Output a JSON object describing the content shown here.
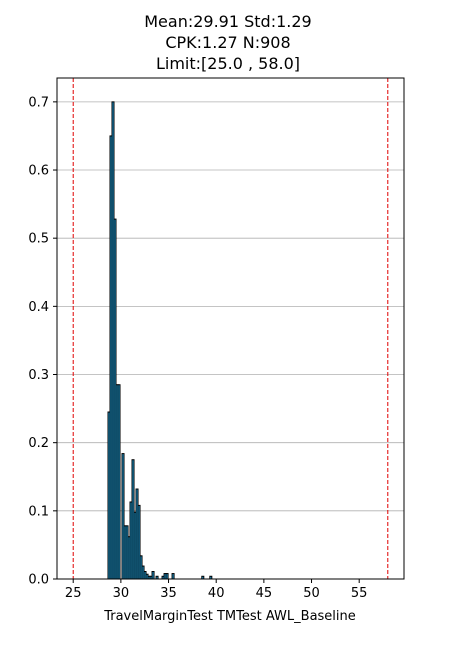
{
  "chart_data": {
    "type": "bar",
    "title_lines": [
      "Mean:29.91  Std:1.29",
      "CPK:1.27 N:908",
      "Limit:[25.0 , 58.0]"
    ],
    "xlabel": "TravelMarginTest TMTest AWL_Baseline",
    "ylabel": "",
    "xlim": [
      23.3,
      59.7
    ],
    "ylim": [
      0,
      0.735
    ],
    "xticks": [
      25,
      30,
      35,
      40,
      45,
      50,
      55
    ],
    "xtick_labels": [
      "25",
      "30",
      "35",
      "40",
      "45",
      "50",
      "55"
    ],
    "yticks": [
      0.0,
      0.1,
      0.2,
      0.3,
      0.4,
      0.5,
      0.6,
      0.7
    ],
    "ytick_labels": [
      "0.0",
      "0.1",
      "0.2",
      "0.3",
      "0.4",
      "0.5",
      "0.6",
      "0.7"
    ],
    "grid": "horizontal",
    "bin_width": 0.21,
    "bar_color": "#1f9fd9",
    "bar_edge_color": "#000000",
    "limit_line_color": "#e00000",
    "limits": [
      25.0,
      58.0
    ],
    "bins": [
      {
        "x": 28.65,
        "y": 0.245
      },
      {
        "x": 28.86,
        "y": 0.65
      },
      {
        "x": 29.07,
        "y": 0.7
      },
      {
        "x": 29.28,
        "y": 0.528
      },
      {
        "x": 29.49,
        "y": 0.285
      },
      {
        "x": 29.7,
        "y": 0.285
      },
      {
        "x": 30.12,
        "y": 0.184
      },
      {
        "x": 30.33,
        "y": 0.078
      },
      {
        "x": 30.54,
        "y": 0.078
      },
      {
        "x": 30.75,
        "y": 0.062
      },
      {
        "x": 30.96,
        "y": 0.113
      },
      {
        "x": 31.17,
        "y": 0.175
      },
      {
        "x": 31.38,
        "y": 0.098
      },
      {
        "x": 31.59,
        "y": 0.132
      },
      {
        "x": 31.8,
        "y": 0.108
      },
      {
        "x": 32.01,
        "y": 0.034
      },
      {
        "x": 32.22,
        "y": 0.019
      },
      {
        "x": 32.43,
        "y": 0.011
      },
      {
        "x": 32.64,
        "y": 0.007
      },
      {
        "x": 32.85,
        "y": 0.004
      },
      {
        "x": 33.06,
        "y": 0.004
      },
      {
        "x": 33.27,
        "y": 0.011
      },
      {
        "x": 33.69,
        "y": 0.004
      },
      {
        "x": 34.32,
        "y": 0.004
      },
      {
        "x": 34.53,
        "y": 0.008
      },
      {
        "x": 34.74,
        "y": 0.008
      },
      {
        "x": 35.37,
        "y": 0.008
      },
      {
        "x": 38.49,
        "y": 0.004
      },
      {
        "x": 39.33,
        "y": 0.004
      }
    ]
  }
}
